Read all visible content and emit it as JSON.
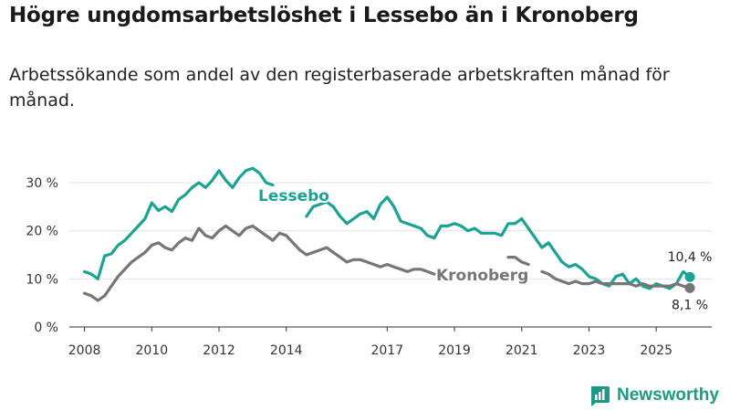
{
  "header": {
    "title": "Högre ungdomsarbetslöshet i Lessebo än i Kronoberg",
    "subtitle": "Arbetssökande som andel av den registerbaserade arbetskraften månad för månad."
  },
  "brand": {
    "name": "Newsworthy"
  },
  "chart_data": {
    "type": "line",
    "title": "Högre ungdomsarbetslöshet i Lessebo än i Kronoberg",
    "xlabel": "",
    "ylabel": "",
    "ylim": [
      0,
      30
    ],
    "xlim": [
      2008,
      2026
    ],
    "yticks": [
      0,
      10,
      20,
      30
    ],
    "ytick_labels": [
      "0 %",
      "10 %",
      "20 %",
      "30 %"
    ],
    "xticks": [
      2008,
      2010,
      2012,
      2014,
      2017,
      2019,
      2021,
      2023,
      2025
    ],
    "xtick_labels": [
      "2008",
      "2010",
      "2012",
      "2014",
      "2017",
      "2019",
      "2021",
      "2023",
      "2025"
    ],
    "grid": true,
    "series": [
      {
        "name": "Lessebo",
        "color": "#1aa393",
        "end_label": "10,4 %",
        "points": [
          [
            2008.0,
            11.5
          ],
          [
            2008.2,
            11.0
          ],
          [
            2008.4,
            10.0
          ],
          [
            2008.6,
            14.8
          ],
          [
            2008.8,
            15.2
          ],
          [
            2009.0,
            17.0
          ],
          [
            2009.2,
            18.0
          ],
          [
            2009.4,
            19.5
          ],
          [
            2009.6,
            21.0
          ],
          [
            2009.8,
            22.5
          ],
          [
            2010.0,
            25.8
          ],
          [
            2010.2,
            24.2
          ],
          [
            2010.4,
            25.0
          ],
          [
            2010.6,
            24.0
          ],
          [
            2010.8,
            26.5
          ],
          [
            2011.0,
            27.5
          ],
          [
            2011.2,
            29.0
          ],
          [
            2011.4,
            30.0
          ],
          [
            2011.6,
            29.0
          ],
          [
            2011.8,
            30.5
          ],
          [
            2012.0,
            32.5
          ],
          [
            2012.2,
            30.5
          ],
          [
            2012.4,
            29.0
          ],
          [
            2012.6,
            31.0
          ],
          [
            2012.8,
            32.5
          ],
          [
            2013.0,
            33.0
          ],
          [
            2013.2,
            32.0
          ],
          [
            2013.4,
            30.0
          ],
          [
            2013.6,
            29.5
          ],
          [
            2014.6,
            23.0
          ],
          [
            2014.8,
            25.0
          ],
          [
            2015.0,
            25.5
          ],
          [
            2015.2,
            26.0
          ],
          [
            2015.4,
            25.0
          ],
          [
            2015.6,
            23.0
          ],
          [
            2015.8,
            21.5
          ],
          [
            2016.0,
            22.5
          ],
          [
            2016.2,
            23.5
          ],
          [
            2016.4,
            24.0
          ],
          [
            2016.6,
            22.5
          ],
          [
            2016.8,
            25.5
          ],
          [
            2017.0,
            27.0
          ],
          [
            2017.2,
            25.0
          ],
          [
            2017.4,
            22.0
          ],
          [
            2017.6,
            21.5
          ],
          [
            2017.8,
            21.0
          ],
          [
            2018.0,
            20.5
          ],
          [
            2018.2,
            19.0
          ],
          [
            2018.4,
            18.5
          ],
          [
            2018.6,
            21.0
          ],
          [
            2018.8,
            21.0
          ],
          [
            2019.0,
            21.5
          ],
          [
            2019.2,
            21.0
          ],
          [
            2019.4,
            20.0
          ],
          [
            2019.6,
            20.5
          ],
          [
            2019.8,
            19.5
          ],
          [
            2020.0,
            19.5
          ],
          [
            2020.2,
            19.5
          ],
          [
            2020.4,
            19.0
          ],
          [
            2020.6,
            21.5
          ],
          [
            2020.8,
            21.5
          ],
          [
            2021.0,
            22.5
          ],
          [
            2021.2,
            20.5
          ],
          [
            2021.4,
            18.5
          ],
          [
            2021.6,
            16.5
          ],
          [
            2021.8,
            17.5
          ],
          [
            2022.0,
            15.5
          ],
          [
            2022.2,
            13.5
          ],
          [
            2022.4,
            12.5
          ],
          [
            2022.6,
            13.0
          ],
          [
            2022.8,
            12.0
          ],
          [
            2023.0,
            10.5
          ],
          [
            2023.2,
            10.0
          ],
          [
            2023.4,
            9.0
          ],
          [
            2023.6,
            8.5
          ],
          [
            2023.8,
            10.5
          ],
          [
            2024.0,
            11.0
          ],
          [
            2024.2,
            9.0
          ],
          [
            2024.4,
            10.0
          ],
          [
            2024.6,
            8.5
          ],
          [
            2024.8,
            8.0
          ],
          [
            2025.0,
            9.0
          ],
          [
            2025.2,
            8.5
          ],
          [
            2025.4,
            8.0
          ],
          [
            2025.6,
            9.0
          ],
          [
            2025.8,
            11.5
          ],
          [
            2026.0,
            10.4
          ]
        ]
      },
      {
        "name": "Kronoberg",
        "color": "#767676",
        "end_label": "8,1 %",
        "points": [
          [
            2008.0,
            7.0
          ],
          [
            2008.2,
            6.5
          ],
          [
            2008.4,
            5.5
          ],
          [
            2008.6,
            6.5
          ],
          [
            2008.8,
            8.5
          ],
          [
            2009.0,
            10.5
          ],
          [
            2009.2,
            12.0
          ],
          [
            2009.4,
            13.5
          ],
          [
            2009.6,
            14.5
          ],
          [
            2009.8,
            15.5
          ],
          [
            2010.0,
            17.0
          ],
          [
            2010.2,
            17.5
          ],
          [
            2010.4,
            16.5
          ],
          [
            2010.6,
            16.0
          ],
          [
            2010.8,
            17.5
          ],
          [
            2011.0,
            18.5
          ],
          [
            2011.2,
            18.0
          ],
          [
            2011.4,
            20.5
          ],
          [
            2011.6,
            19.0
          ],
          [
            2011.8,
            18.5
          ],
          [
            2012.0,
            20.0
          ],
          [
            2012.2,
            21.0
          ],
          [
            2012.4,
            20.0
          ],
          [
            2012.6,
            19.0
          ],
          [
            2012.8,
            20.5
          ],
          [
            2013.0,
            21.0
          ],
          [
            2013.2,
            20.0
          ],
          [
            2013.4,
            19.0
          ],
          [
            2013.6,
            18.0
          ],
          [
            2013.8,
            19.5
          ],
          [
            2014.0,
            19.0
          ],
          [
            2014.2,
            17.5
          ],
          [
            2014.4,
            16.0
          ],
          [
            2014.6,
            15.0
          ],
          [
            2014.8,
            15.5
          ],
          [
            2015.0,
            16.0
          ],
          [
            2015.2,
            16.5
          ],
          [
            2015.4,
            15.5
          ],
          [
            2015.6,
            14.5
          ],
          [
            2015.8,
            13.5
          ],
          [
            2016.0,
            14.0
          ],
          [
            2016.2,
            14.0
          ],
          [
            2016.4,
            13.5
          ],
          [
            2016.6,
            13.0
          ],
          [
            2016.8,
            12.5
          ],
          [
            2017.0,
            13.0
          ],
          [
            2017.2,
            12.5
          ],
          [
            2017.4,
            12.0
          ],
          [
            2017.6,
            11.5
          ],
          [
            2017.8,
            12.0
          ],
          [
            2018.0,
            12.0
          ],
          [
            2018.2,
            11.5
          ],
          [
            2018.4,
            11.0
          ],
          [
            2020.6,
            14.5
          ],
          [
            2020.8,
            14.5
          ],
          [
            2021.0,
            13.5
          ],
          [
            2021.2,
            13.0
          ],
          [
            2021.6,
            11.5
          ],
          [
            2021.8,
            11.0
          ],
          [
            2022.0,
            10.0
          ],
          [
            2022.2,
            9.5
          ],
          [
            2022.4,
            9.0
          ],
          [
            2022.6,
            9.5
          ],
          [
            2022.8,
            9.0
          ],
          [
            2023.0,
            9.0
          ],
          [
            2023.2,
            9.5
          ],
          [
            2023.4,
            9.0
          ],
          [
            2023.6,
            9.0
          ],
          [
            2023.8,
            9.0
          ],
          [
            2024.0,
            9.0
          ],
          [
            2024.2,
            9.0
          ],
          [
            2024.4,
            8.5
          ],
          [
            2024.6,
            9.0
          ],
          [
            2024.8,
            8.5
          ],
          [
            2025.0,
            8.5
          ],
          [
            2025.2,
            8.5
          ],
          [
            2025.4,
            8.5
          ],
          [
            2025.6,
            9.0
          ],
          [
            2025.8,
            8.5
          ],
          [
            2026.0,
            8.1
          ]
        ]
      }
    ],
    "annotations": [
      {
        "text": "Lessebo",
        "series": "Lessebo",
        "x": 2014.0,
        "y": 27.0
      },
      {
        "text": "Kronoberg",
        "series": "Kronoberg",
        "x": 2019.5,
        "y": 11.0
      }
    ]
  }
}
